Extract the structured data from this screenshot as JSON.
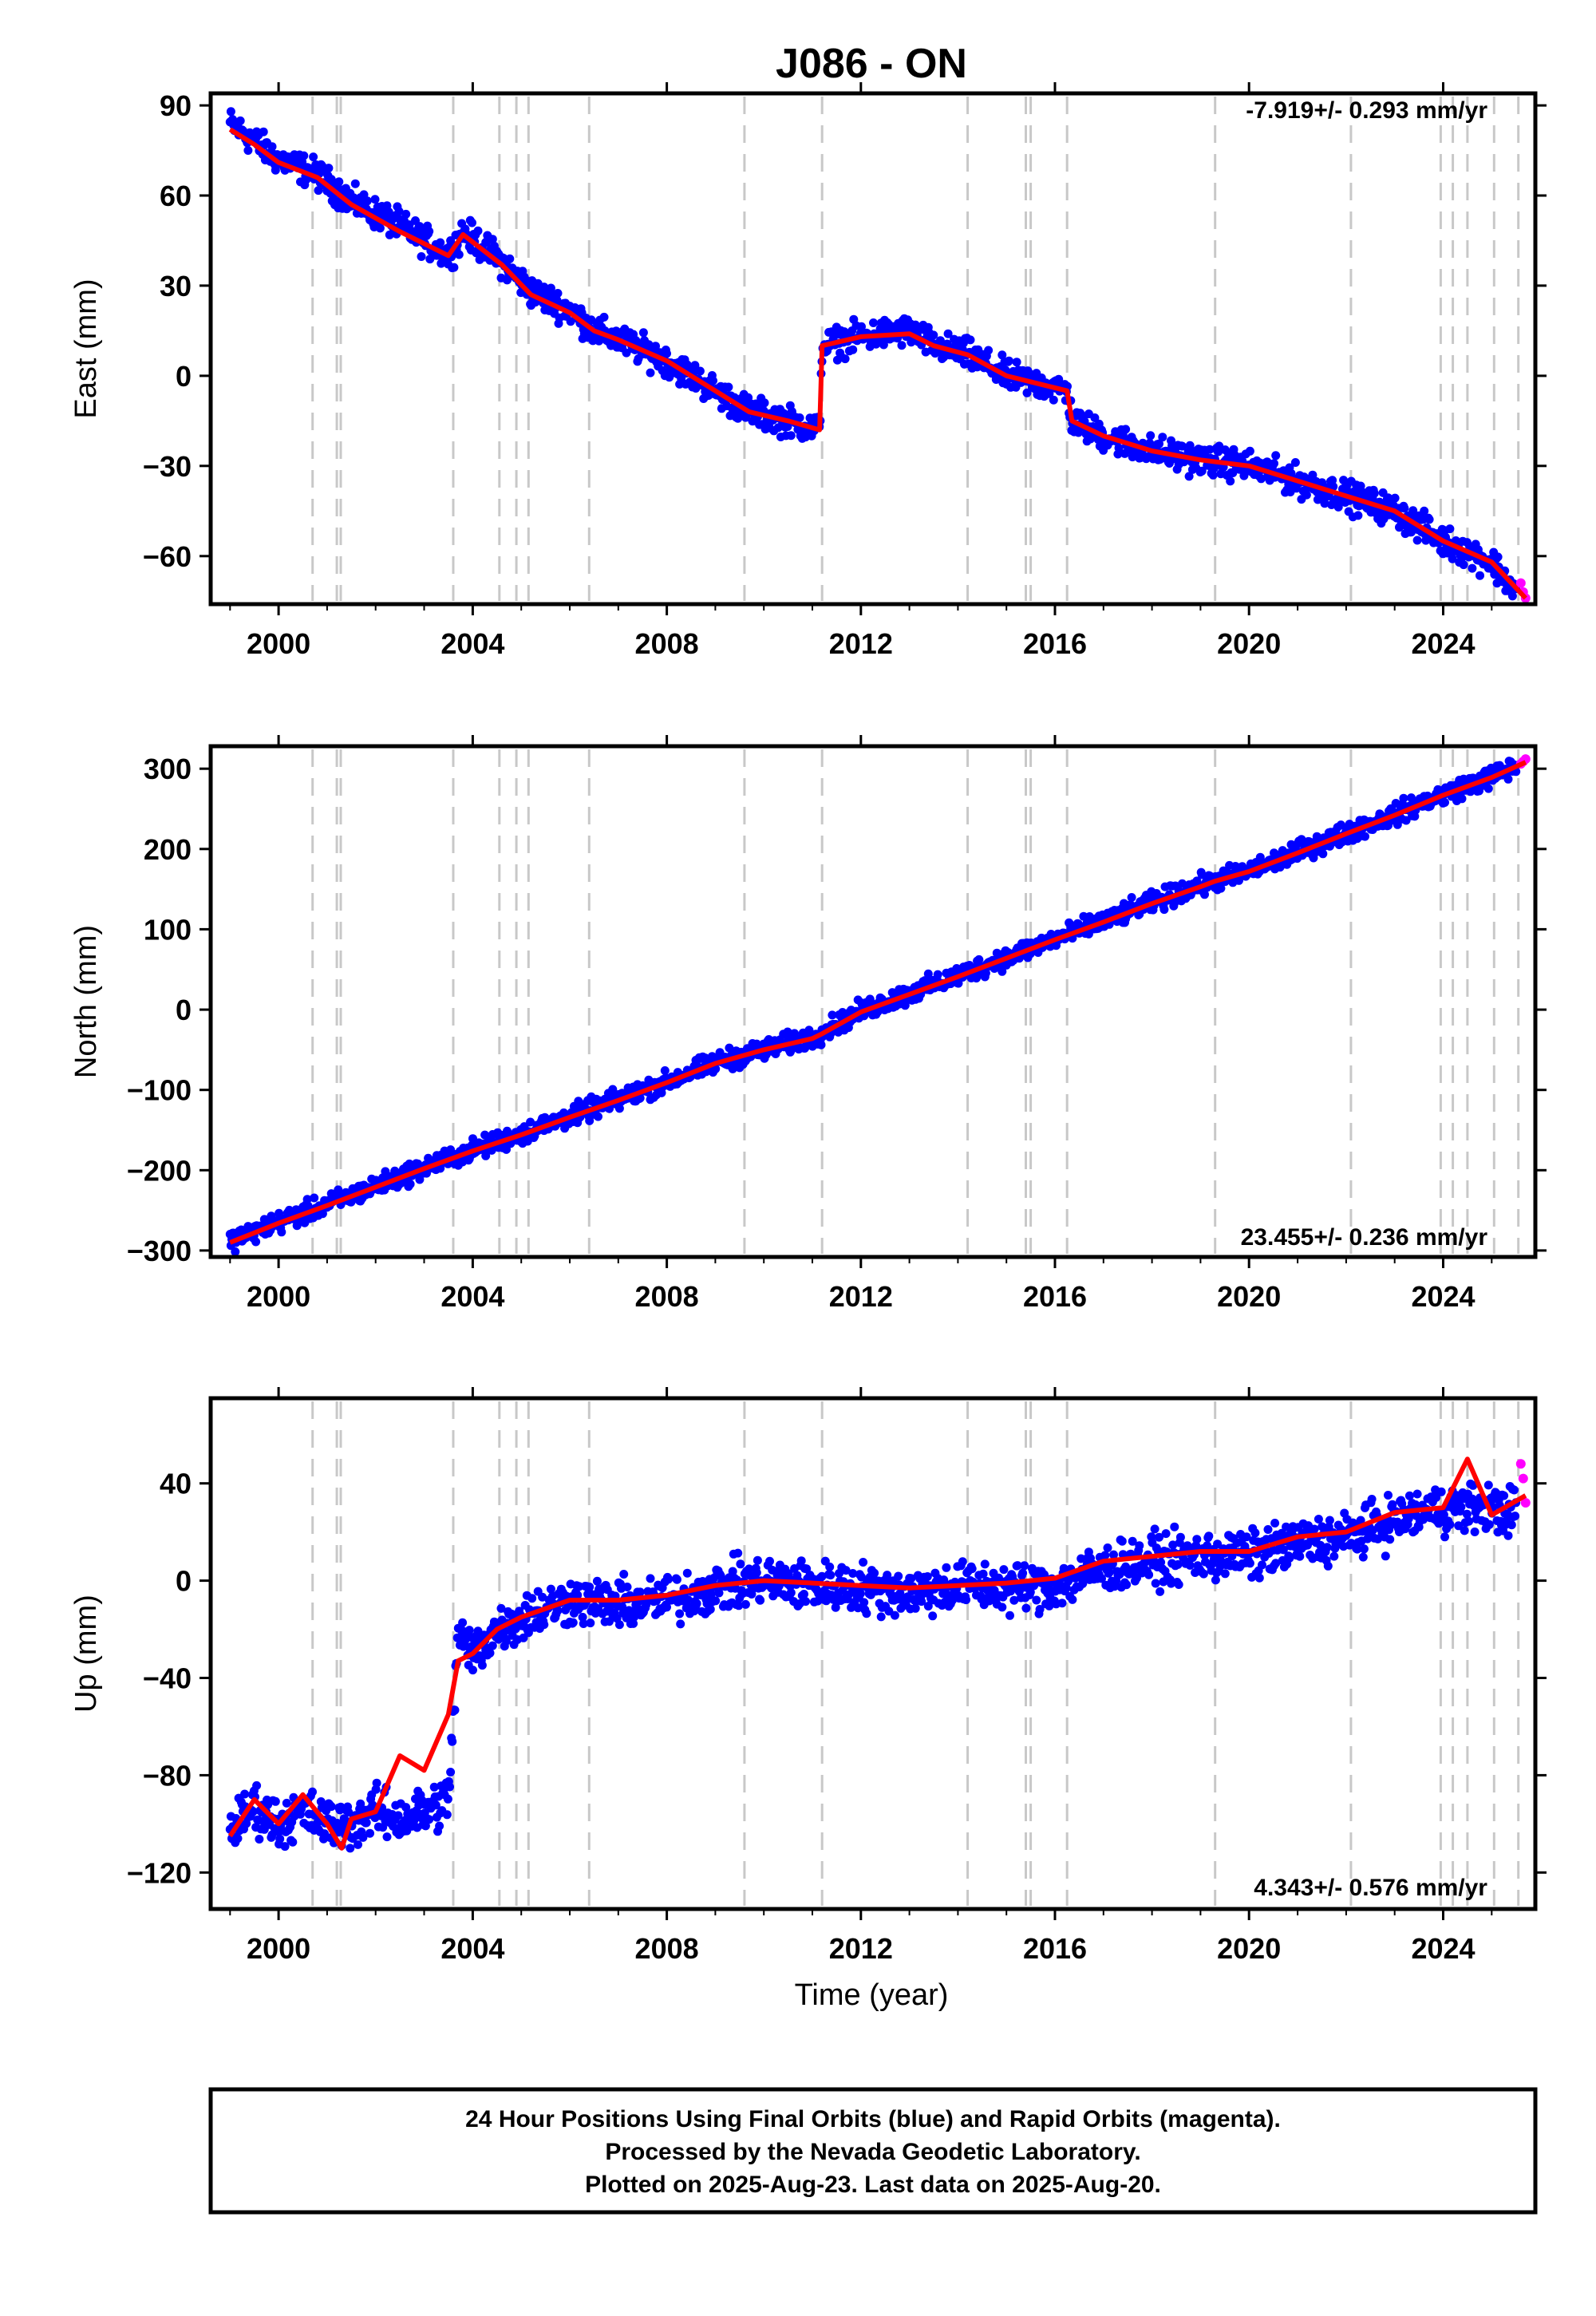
{
  "chart_data": [
    {
      "type": "scatter",
      "title": "J086 - ON",
      "ylabel": "East (mm)",
      "xlabel": "",
      "xlim": [
        1998.6,
        2025.9
      ],
      "ylim": [
        -76,
        94
      ],
      "xticks": [
        2000,
        2004,
        2008,
        2012,
        2016,
        2020,
        2024
      ],
      "yticks": [
        90,
        60,
        30,
        0,
        -30,
        -60
      ],
      "ytick_labels": [
        "90",
        "60",
        "30",
        "0",
        "−30",
        "−60"
      ],
      "grid": false,
      "rate_label": "-7.919+/- 0.293 mm/yr",
      "rate_position": "top-right",
      "series": [
        {
          "name": "Final Orbits (blue)",
          "color": "#0000ff",
          "x": [
            1999.0,
            1999.5,
            2000.0,
            2000.8,
            2001.5,
            2002.5,
            2003.5,
            2003.8,
            2004.6,
            2005.2,
            2006.0,
            2006.5,
            2007.0,
            2008.0,
            2009.0,
            2009.7,
            2010.5,
            2011.15,
            2011.2,
            2012.0,
            2013.0,
            2013.5,
            2014.2,
            2015.0,
            2015.5,
            2016.25,
            2016.35,
            2017.0,
            2018.0,
            2019.0,
            2020.0,
            2021.0,
            2022.0,
            2023.0,
            2024.0,
            2025.0,
            2025.5
          ],
          "y": [
            84,
            78,
            72,
            67,
            58,
            50,
            40,
            48,
            38,
            28,
            22,
            15,
            12,
            5,
            -5,
            -12,
            -15,
            -18,
            10,
            13,
            15,
            10,
            7,
            0,
            -2,
            -5,
            -15,
            -20,
            -25,
            -28,
            -30,
            -35,
            -40,
            -45,
            -55,
            -62,
            -72
          ]
        },
        {
          "name": "Rapid Orbits (magenta)",
          "color": "#ff00ff",
          "x": [
            2025.6,
            2025.65,
            2025.7
          ],
          "y": [
            -69,
            -72,
            -74
          ]
        },
        {
          "name": "Model fit",
          "color": "#ff0000",
          "x": [
            1999.0,
            1999.5,
            2000.0,
            2000.8,
            2001.5,
            2002.5,
            2003.5,
            2003.8,
            2004.6,
            2005.2,
            2006.0,
            2006.5,
            2007.0,
            2008.0,
            2009.0,
            2009.7,
            2010.5,
            2011.15,
            2011.2,
            2012.0,
            2013.0,
            2013.5,
            2014.2,
            2015.0,
            2015.5,
            2016.25,
            2016.35,
            2017.0,
            2018.0,
            2019.0,
            2020.0,
            2021.0,
            2022.0,
            2023.0,
            2024.0,
            2025.0,
            2025.7
          ],
          "y": [
            82,
            77,
            71,
            66,
            57,
            48,
            40,
            47,
            37,
            27,
            21,
            15,
            12,
            5,
            -5,
            -12,
            -15,
            -18,
            10,
            13,
            14,
            10,
            7,
            0,
            -2,
            -5,
            -15,
            -20,
            -25,
            -28,
            -30,
            -35,
            -40,
            -45,
            -55,
            -62,
            -74
          ]
        }
      ],
      "offset_epochs": [
        2000.7,
        2001.2,
        2001.28,
        2003.6,
        2004.55,
        2004.9,
        2005.15,
        2006.4,
        2009.6,
        2011.2,
        2014.2,
        2015.4,
        2015.5,
        2016.25,
        2019.3,
        2022.1,
        2023.95,
        2024.2,
        2024.5,
        2025.05,
        2025.55
      ]
    },
    {
      "type": "scatter",
      "ylabel": "North (mm)",
      "xlabel": "",
      "xlim": [
        1998.6,
        2025.9
      ],
      "ylim": [
        -308,
        328
      ],
      "xticks": [
        2000,
        2004,
        2008,
        2012,
        2016,
        2020,
        2024
      ],
      "yticks": [
        300,
        200,
        100,
        0,
        -100,
        -200,
        -300
      ],
      "ytick_labels": [
        "300",
        "200",
        "100",
        "0",
        "−100",
        "−200",
        "−300"
      ],
      "grid": false,
      "rate_label": "23.455+/- 0.236 mm/yr",
      "rate_position": "bottom-right",
      "series": [
        {
          "name": "Final Orbits (blue)",
          "color": "#0000ff",
          "x": [
            1999.0,
            2000.0,
            2001.0,
            2002.0,
            2003.0,
            2004.0,
            2005.0,
            2006.0,
            2007.0,
            2008.0,
            2009.0,
            2010.0,
            2011.0,
            2011.2,
            2012.0,
            2013.0,
            2014.0,
            2015.0,
            2016.0,
            2017.0,
            2018.0,
            2019.0,
            2020.0,
            2021.0,
            2022.0,
            2023.0,
            2024.0,
            2025.0,
            2025.5
          ],
          "y": [
            -288,
            -265,
            -243,
            -220,
            -197,
            -175,
            -155,
            -133,
            -112,
            -90,
            -66,
            -50,
            -35,
            -28,
            -2,
            20,
            42,
            65,
            88,
            110,
            133,
            155,
            172,
            196,
            220,
            243,
            268,
            290,
            303
          ]
        },
        {
          "name": "Rapid Orbits (magenta)",
          "color": "#ff00ff",
          "x": [
            2025.6,
            2025.65,
            2025.7
          ],
          "y": [
            306,
            309,
            312
          ]
        },
        {
          "name": "Model fit",
          "color": "#ff0000",
          "x": [
            1999.0,
            2000.0,
            2001.0,
            2002.0,
            2003.0,
            2004.0,
            2005.0,
            2006.0,
            2007.0,
            2008.0,
            2009.0,
            2010.0,
            2011.0,
            2011.2,
            2012.0,
            2013.0,
            2014.0,
            2015.0,
            2016.0,
            2017.0,
            2018.0,
            2019.0,
            2019.3,
            2020.0,
            2021.0,
            2022.0,
            2023.0,
            2024.0,
            2025.0,
            2025.7
          ],
          "y": [
            -290,
            -266,
            -244,
            -221,
            -198,
            -176,
            -156,
            -134,
            -113,
            -91,
            -67,
            -50,
            -36,
            -30,
            -3,
            19,
            41,
            64,
            87,
            109,
            132,
            153,
            160,
            172,
            195,
            219,
            242,
            267,
            289,
            308
          ]
        }
      ],
      "offset_epochs": [
        2000.7,
        2001.2,
        2001.28,
        2003.6,
        2004.55,
        2004.9,
        2005.15,
        2006.4,
        2009.6,
        2011.2,
        2014.2,
        2015.4,
        2015.5,
        2016.25,
        2019.3,
        2022.1,
        2023.95,
        2024.2,
        2024.5,
        2025.05,
        2025.55
      ]
    },
    {
      "type": "scatter",
      "ylabel": "Up (mm)",
      "xlabel": "Time (year)",
      "xlim": [
        1998.6,
        2025.9
      ],
      "ylim": [
        -135,
        75
      ],
      "xticks": [
        2000,
        2004,
        2008,
        2012,
        2016,
        2020,
        2024
      ],
      "yticks": [
        40,
        0,
        -40,
        -80,
        -120
      ],
      "ytick_labels": [
        "40",
        "0",
        "−40",
        "−80",
        "−120"
      ],
      "grid": false,
      "rate_label": "4.343+/- 0.576 mm/yr",
      "rate_position": "bottom-right",
      "series": [
        {
          "name": "Final Orbits (blue)",
          "color": "#0000ff",
          "x": [
            1999.0,
            1999.5,
            2000.0,
            2000.5,
            2001.0,
            2001.5,
            2002.0,
            2002.5,
            2003.0,
            2003.5,
            2003.7,
            2004.0,
            2004.5,
            2005.0,
            2006.0,
            2007.0,
            2008.0,
            2009.0,
            2010.0,
            2011.0,
            2012.0,
            2013.0,
            2014.0,
            2015.0,
            2016.0,
            2017.0,
            2018.0,
            2019.0,
            2020.0,
            2021.0,
            2022.0,
            2023.0,
            2024.0,
            2025.0,
            2025.5
          ],
          "y": [
            -103,
            -93,
            -100,
            -95,
            -100,
            -100,
            -95,
            -98,
            -95,
            -90,
            -22,
            -30,
            -20,
            -15,
            -8,
            -10,
            -8,
            -3,
            0,
            -2,
            -3,
            -5,
            -2,
            -3,
            -2,
            5,
            8,
            10,
            10,
            15,
            18,
            25,
            30,
            30,
            28
          ]
        },
        {
          "name": "Rapid Orbits (magenta)",
          "color": "#ff00ff",
          "x": [
            2025.6,
            2025.65,
            2025.7
          ],
          "y": [
            48,
            42,
            32
          ]
        },
        {
          "name": "Model fit",
          "color": "#ff0000",
          "x": [
            1999.0,
            1999.5,
            2000.0,
            2000.5,
            2001.0,
            2001.3,
            2001.5,
            2002.0,
            2002.5,
            2003.0,
            2003.5,
            2003.7,
            2004.0,
            2004.5,
            2005.0,
            2006.0,
            2007.0,
            2008.0,
            2009.0,
            2010.0,
            2011.0,
            2012.0,
            2013.0,
            2014.0,
            2015.0,
            2016.0,
            2017.0,
            2018.0,
            2019.0,
            2020.0,
            2021.0,
            2022.0,
            2023.0,
            2024.0,
            2024.5,
            2025.0,
            2025.7
          ],
          "y": [
            -105,
            -90,
            -100,
            -88,
            -100,
            -110,
            -98,
            -95,
            -72,
            -78,
            -55,
            -33,
            -30,
            -20,
            -15,
            -8,
            -8,
            -6,
            -2,
            0,
            -1,
            -2,
            -3,
            -2,
            -1,
            1,
            8,
            10,
            12,
            12,
            18,
            20,
            28,
            30,
            50,
            27,
            35
          ]
        }
      ],
      "offset_epochs": [
        2000.7,
        2001.2,
        2001.28,
        2003.6,
        2004.55,
        2004.9,
        2005.15,
        2006.4,
        2009.6,
        2011.2,
        2014.2,
        2015.4,
        2015.5,
        2016.25,
        2019.3,
        2022.1,
        2023.95,
        2024.2,
        2024.5,
        2025.05,
        2025.55
      ]
    }
  ],
  "footer": {
    "line1": "24 Hour Positions Using Final Orbits (blue) and Rapid Orbits (magenta).",
    "line2": "Processed by the Nevada Geodetic Laboratory.",
    "line3": "Plotted on 2025-Aug-23. Last data on 2025-Aug-20."
  }
}
